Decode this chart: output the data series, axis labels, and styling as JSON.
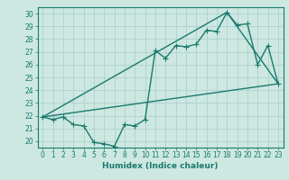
{
  "title": "",
  "xlabel": "Humidex (Indice chaleur)",
  "ylabel": "",
  "bg_color": "#cce8e0",
  "grid_color": "#aacccc",
  "line_color": "#1a7a6e",
  "xlim": [
    -0.5,
    23.5
  ],
  "ylim": [
    19.5,
    30.5
  ],
  "xticks": [
    0,
    1,
    2,
    3,
    4,
    5,
    6,
    7,
    8,
    9,
    10,
    11,
    12,
    13,
    14,
    15,
    16,
    17,
    18,
    19,
    20,
    21,
    22,
    23
  ],
  "yticks": [
    20,
    21,
    22,
    23,
    24,
    25,
    26,
    27,
    28,
    29,
    30
  ],
  "line1_x": [
    0,
    1,
    2,
    3,
    4,
    5,
    6,
    7,
    8,
    9,
    10,
    11,
    12,
    13,
    14,
    15,
    16,
    17,
    18,
    19,
    20,
    21,
    22,
    23
  ],
  "line1_y": [
    21.9,
    21.7,
    21.9,
    21.3,
    21.2,
    19.9,
    19.8,
    19.6,
    21.3,
    21.2,
    21.7,
    27.1,
    26.5,
    27.5,
    27.4,
    27.6,
    28.7,
    28.6,
    30.1,
    29.1,
    29.2,
    26.0,
    27.5,
    24.5
  ],
  "line2_x": [
    0,
    23
  ],
  "line2_y": [
    21.9,
    24.5
  ],
  "line3_x": [
    0,
    18,
    23
  ],
  "line3_y": [
    21.9,
    30.1,
    24.5
  ],
  "marker_size": 4,
  "line_width": 1.0,
  "tick_fontsize": 5.5,
  "xlabel_fontsize": 6.5
}
